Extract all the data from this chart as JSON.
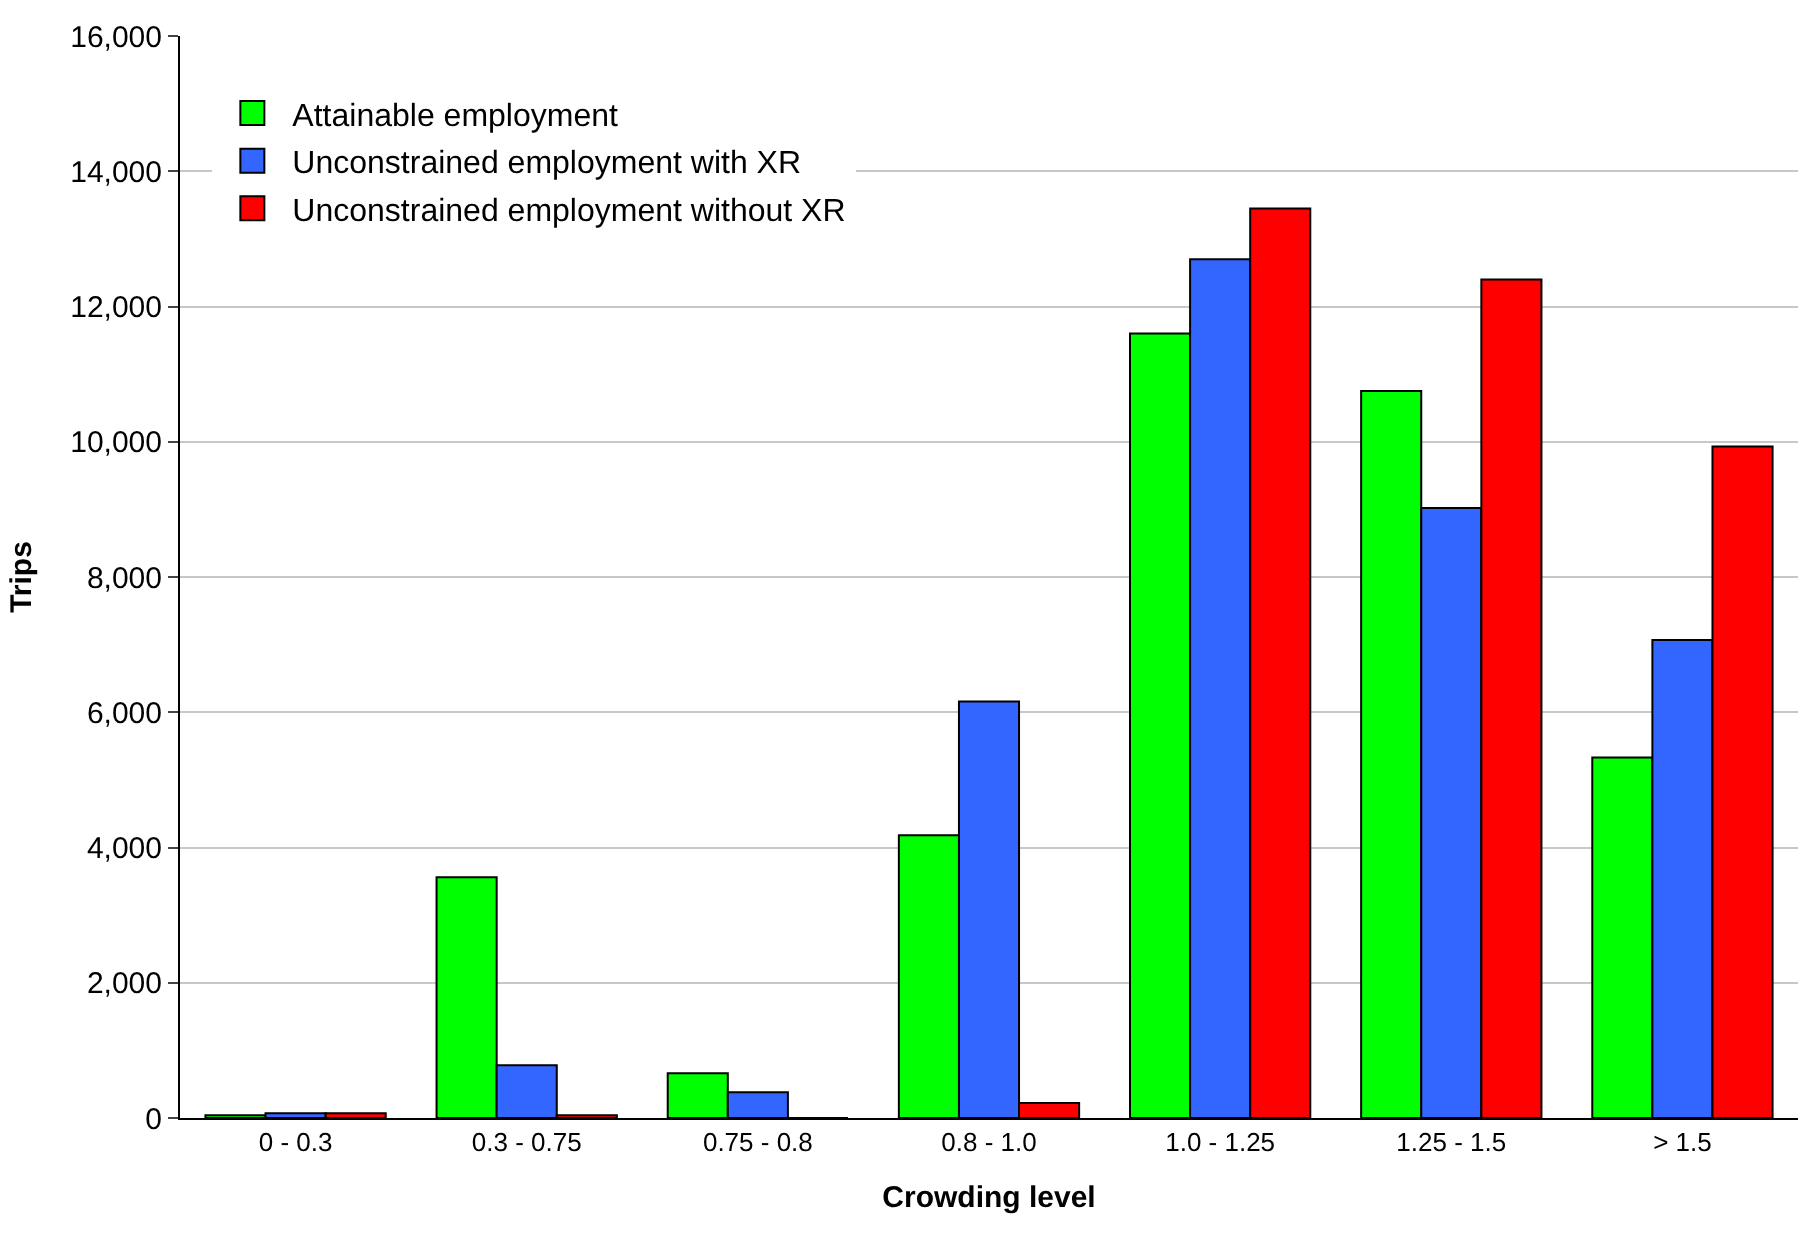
{
  "chart_data": {
    "type": "bar",
    "xlabel": "Crowding level",
    "ylabel": "Trips",
    "categories": [
      "0 - 0.3",
      "0.3 - 0.75",
      "0.75 - 0.8",
      "0.8 - 1.0",
      "1.0 - 1.25",
      "1.25 - 1.5",
      "> 1.5"
    ],
    "series": [
      {
        "name": "Attainable employment",
        "color": "#00ff00",
        "values": [
          40,
          3560,
          660,
          4180,
          11600,
          10750,
          5330
        ]
      },
      {
        "name": "Unconstrained employment with XR",
        "color": "#3366ff",
        "values": [
          70,
          780,
          380,
          6160,
          12700,
          9020,
          7070
        ]
      },
      {
        "name": "Unconstrained employment without XR",
        "color": "#ff0000",
        "values": [
          70,
          40,
          0,
          220,
          13450,
          12400,
          9930
        ]
      }
    ],
    "ylim": [
      0,
      16000
    ],
    "yticks": [
      {
        "value": 0,
        "label": "0"
      },
      {
        "value": 2000,
        "label": "2,000"
      },
      {
        "value": 4000,
        "label": "4,000"
      },
      {
        "value": 6000,
        "label": "6,000"
      },
      {
        "value": 8000,
        "label": "8,000"
      },
      {
        "value": 10000,
        "label": "10,000"
      },
      {
        "value": 12000,
        "label": "12,000"
      },
      {
        "value": 14000,
        "label": "14,000"
      },
      {
        "value": 16000,
        "label": "16,000"
      }
    ],
    "grid": "y",
    "legend": "top left"
  }
}
